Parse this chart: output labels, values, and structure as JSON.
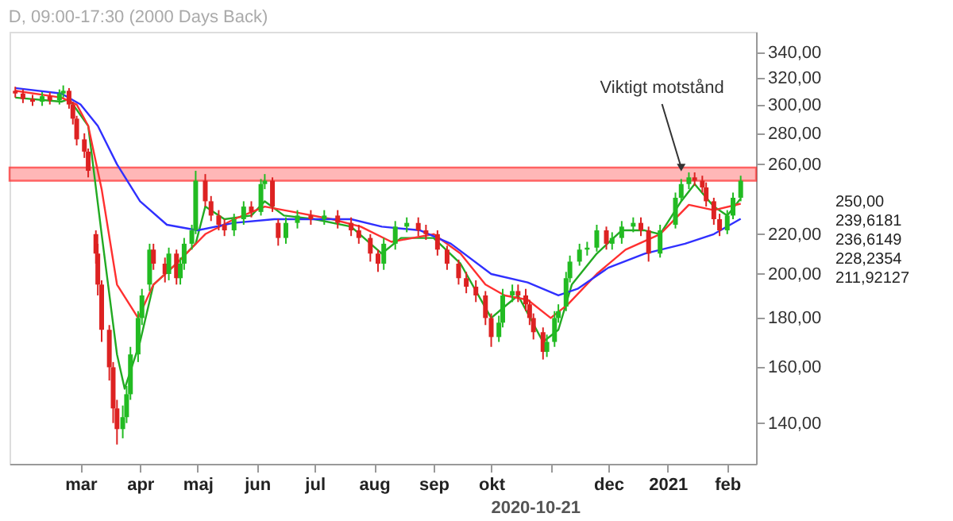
{
  "chart_data": {
    "type": "candlestick",
    "title": "D, 09:00-17:30 (2000 Days Back)",
    "x": [
      "2020-01-27",
      "2020-01-31",
      "2020-02-05",
      "2020-02-10",
      "2020-02-14",
      "2020-02-19",
      "2020-02-21",
      "2020-02-24",
      "2020-02-26",
      "2020-02-28",
      "2020-03-03",
      "2020-03-05",
      "2020-03-09",
      "2020-03-10",
      "2020-03-12",
      "2020-03-16",
      "2020-03-18",
      "2020-03-20",
      "2020-03-23",
      "2020-03-25",
      "2020-03-27",
      "2020-03-31",
      "2020-04-02",
      "2020-04-06",
      "2020-04-08",
      "2020-04-14",
      "2020-04-16",
      "2020-04-20",
      "2020-04-22",
      "2020-04-24",
      "2020-04-28",
      "2020-04-30",
      "2020-05-05",
      "2020-05-08",
      "2020-05-12",
      "2020-05-15",
      "2020-05-20",
      "2020-05-25",
      "2020-05-29",
      "2020-06-03",
      "2020-06-05",
      "2020-06-09",
      "2020-06-12",
      "2020-06-16",
      "2020-06-22",
      "2020-06-29",
      "2020-07-06",
      "2020-07-13",
      "2020-07-20",
      "2020-07-24",
      "2020-07-30",
      "2020-08-03",
      "2020-08-06",
      "2020-08-12",
      "2020-08-18",
      "2020-08-24",
      "2020-08-28",
      "2020-09-03",
      "2020-09-08",
      "2020-09-14",
      "2020-09-18",
      "2020-09-23",
      "2020-09-28",
      "2020-10-01",
      "2020-10-05",
      "2020-10-07",
      "2020-10-12",
      "2020-10-15",
      "2020-10-19",
      "2020-10-21",
      "2020-10-23",
      "2020-10-28",
      "2020-10-30",
      "2020-11-03",
      "2020-11-05",
      "2020-11-09",
      "2020-11-11",
      "2020-11-16",
      "2020-11-20",
      "2020-11-25",
      "2020-11-30",
      "2020-12-03",
      "2020-12-08",
      "2020-12-14",
      "2020-12-18",
      "2020-12-22",
      "2020-12-28",
      "2021-01-05",
      "2021-01-08",
      "2021-01-12",
      "2021-01-15",
      "2021-01-19",
      "2021-01-21",
      "2021-01-25",
      "2021-01-28",
      "2021-02-01",
      "2021-02-04",
      "2021-02-08"
    ],
    "ohlc": [
      [
        310,
        313,
        305,
        308
      ],
      [
        308,
        311,
        301,
        304
      ],
      [
        304,
        307,
        299,
        302
      ],
      [
        302,
        309,
        299,
        306
      ],
      [
        306,
        309,
        300,
        303
      ],
      [
        303,
        311,
        300,
        308
      ],
      [
        308,
        314,
        305,
        310
      ],
      [
        310,
        312,
        297,
        300
      ],
      [
        300,
        302,
        286,
        290
      ],
      [
        290,
        292,
        272,
        276
      ],
      [
        276,
        280,
        264,
        268
      ],
      [
        268,
        270,
        252,
        256
      ],
      [
        220,
        222,
        205,
        210
      ],
      [
        210,
        215,
        190,
        195
      ],
      [
        195,
        197,
        170,
        175
      ],
      [
        175,
        177,
        155,
        160
      ],
      [
        160,
        162,
        140,
        145
      ],
      [
        145,
        148,
        133,
        138
      ],
      [
        138,
        146,
        135,
        142
      ],
      [
        142,
        153,
        140,
        150
      ],
      [
        150,
        168,
        148,
        165
      ],
      [
        165,
        183,
        162,
        180
      ],
      [
        180,
        193,
        177,
        190
      ],
      [
        195,
        215,
        192,
        212
      ],
      [
        212,
        215,
        202,
        205
      ],
      [
        205,
        208,
        196,
        200
      ],
      [
        200,
        213,
        197,
        210
      ],
      [
        210,
        212,
        195,
        198
      ],
      [
        198,
        208,
        195,
        205
      ],
      [
        205,
        218,
        202,
        215
      ],
      [
        215,
        225,
        212,
        222
      ],
      [
        222,
        256,
        220,
        250
      ],
      [
        250,
        254,
        235,
        238
      ],
      [
        238,
        241,
        227,
        230
      ],
      [
        230,
        233,
        222,
        225
      ],
      [
        225,
        228,
        219,
        222
      ],
      [
        222,
        231,
        219,
        228
      ],
      [
        228,
        238,
        225,
        235
      ],
      [
        235,
        238,
        229,
        232
      ],
      [
        232,
        251,
        230,
        248
      ],
      [
        248,
        254,
        245,
        250
      ],
      [
        250,
        252,
        232,
        235
      ],
      [
        226,
        228,
        214,
        218
      ],
      [
        218,
        229,
        215,
        226
      ],
      [
        226,
        233,
        223,
        230
      ],
      [
        230,
        233,
        225,
        228
      ],
      [
        228,
        233,
        225,
        230
      ],
      [
        230,
        233,
        223,
        226
      ],
      [
        226,
        229,
        219,
        222
      ],
      [
        222,
        225,
        215,
        218
      ],
      [
        218,
        220,
        206,
        210
      ],
      [
        210,
        212,
        201,
        205
      ],
      [
        205,
        218,
        202,
        215
      ],
      [
        215,
        227,
        212,
        224
      ],
      [
        224,
        229,
        221,
        226
      ],
      [
        226,
        229,
        219,
        222
      ],
      [
        222,
        225,
        217,
        220
      ],
      [
        220,
        222,
        209,
        212
      ],
      [
        212,
        214,
        202,
        205
      ],
      [
        205,
        207,
        195,
        198
      ],
      [
        198,
        201,
        191,
        194
      ],
      [
        194,
        197,
        187,
        190
      ],
      [
        190,
        192,
        177,
        180
      ],
      [
        180,
        182,
        168,
        172
      ],
      [
        172,
        181,
        170,
        178
      ],
      [
        178,
        193,
        176,
        190
      ],
      [
        190,
        195,
        187,
        192
      ],
      [
        192,
        195,
        187,
        190
      ],
      [
        190,
        193,
        183,
        186
      ],
      [
        186,
        188,
        177,
        180
      ],
      [
        180,
        182,
        171,
        174
      ],
      [
        174,
        176,
        163,
        166
      ],
      [
        166,
        173,
        164,
        170
      ],
      [
        170,
        183,
        168,
        180
      ],
      [
        180,
        186,
        178,
        183
      ],
      [
        185,
        201,
        183,
        198
      ],
      [
        198,
        209,
        196,
        206
      ],
      [
        206,
        215,
        204,
        212
      ],
      [
        212,
        216,
        209,
        213
      ],
      [
        213,
        225,
        211,
        222
      ],
      [
        222,
        224,
        212,
        215
      ],
      [
        215,
        221,
        212,
        218
      ],
      [
        218,
        227,
        215,
        224
      ],
      [
        224,
        229,
        221,
        226
      ],
      [
        226,
        229,
        219,
        222
      ],
      [
        222,
        224,
        206,
        210
      ],
      [
        210,
        225,
        208,
        222
      ],
      [
        225,
        243,
        223,
        240
      ],
      [
        240,
        251,
        238,
        248
      ],
      [
        248,
        255,
        245,
        252
      ],
      [
        252,
        255,
        247,
        250
      ],
      [
        250,
        253,
        243,
        246
      ],
      [
        246,
        249,
        235,
        238
      ],
      [
        238,
        240,
        225,
        228
      ],
      [
        228,
        231,
        219,
        222
      ],
      [
        222,
        233,
        220,
        230
      ],
      [
        230,
        243,
        228,
        240
      ],
      [
        240,
        253,
        238,
        250
      ]
    ],
    "colors": [
      "#dd2222",
      "#dd2222",
      "#dd2222",
      "#22bb22",
      "#dd2222",
      "#22bb22",
      "#22bb22",
      "#dd2222",
      "#dd2222",
      "#dd2222",
      "#dd2222",
      "#dd2222",
      "#dd2222",
      "#dd2222",
      "#dd2222",
      "#dd2222",
      "#dd2222",
      "#dd2222",
      "#22bb22",
      "#22bb22",
      "#22bb22",
      "#22bb22",
      "#22bb22",
      "#22bb22",
      "#dd2222",
      "#dd2222",
      "#22bb22",
      "#dd2222",
      "#22bb22",
      "#22bb22",
      "#22bb22",
      "#22bb22",
      "#dd2222",
      "#dd2222",
      "#dd2222",
      "#dd2222",
      "#22bb22",
      "#22bb22",
      "#dd2222",
      "#22bb22",
      "#22bb22",
      "#dd2222",
      "#dd2222",
      "#22bb22",
      "#22bb22",
      "#dd2222",
      "#22bb22",
      "#dd2222",
      "#dd2222",
      "#dd2222",
      "#dd2222",
      "#dd2222",
      "#22bb22",
      "#22bb22",
      "#22bb22",
      "#dd2222",
      "#dd2222",
      "#dd2222",
      "#dd2222",
      "#dd2222",
      "#dd2222",
      "#dd2222",
      "#dd2222",
      "#dd2222",
      "#22bb22",
      "#22bb22",
      "#22bb22",
      "#dd2222",
      "#dd2222",
      "#dd2222",
      "#dd2222",
      "#dd2222",
      "#22bb22",
      "#22bb22",
      "#22bb22",
      "#22bb22",
      "#22bb22",
      "#22bb22",
      "#22bb22",
      "#22bb22",
      "#dd2222",
      "#22bb22",
      "#22bb22",
      "#22bb22",
      "#dd2222",
      "#dd2222",
      "#22bb22",
      "#22bb22",
      "#22bb22",
      "#22bb22",
      "#dd2222",
      "#dd2222",
      "#dd2222",
      "#dd2222",
      "#dd2222",
      "#22bb22",
      "#22bb22",
      "#22bb22"
    ],
    "series": [
      {
        "type": "line",
        "color": "#22aa22",
        "x": [
          "2020-01-27",
          "2020-02-20",
          "2020-02-24",
          "2020-03-05",
          "2020-03-12",
          "2020-03-20",
          "2020-03-24",
          "2020-04-01",
          "2020-04-08",
          "2020-04-20",
          "2020-04-30",
          "2020-05-05",
          "2020-05-15",
          "2020-05-29",
          "2020-06-05",
          "2020-06-15",
          "2020-07-01",
          "2020-07-20",
          "2020-08-05",
          "2020-08-15",
          "2020-09-01",
          "2020-09-15",
          "2020-10-01",
          "2020-10-08",
          "2020-10-15",
          "2020-10-28",
          "2020-11-05",
          "2020-11-12",
          "2020-11-25",
          "2020-12-08",
          "2020-12-20",
          "2020-12-28",
          "2021-01-08",
          "2021-01-15",
          "2021-01-25",
          "2021-02-01",
          "2021-02-08"
        ],
        "values": [
          305,
          302,
          304,
          285,
          220,
          165,
          152,
          170,
          195,
          205,
          215,
          235,
          228,
          230,
          238,
          230,
          228,
          224,
          210,
          218,
          218,
          205,
          180,
          185,
          190,
          170,
          175,
          195,
          210,
          222,
          222,
          220,
          238,
          248,
          235,
          230,
          239.6
        ]
      },
      {
        "type": "line",
        "color": "#ff3030",
        "x": [
          "2020-01-27",
          "2020-02-20",
          "2020-02-28",
          "2020-03-05",
          "2020-03-12",
          "2020-03-20",
          "2020-03-31",
          "2020-04-08",
          "2020-04-20",
          "2020-05-05",
          "2020-05-20",
          "2020-06-05",
          "2020-06-20",
          "2020-07-10",
          "2020-07-25",
          "2020-08-10",
          "2020-09-01",
          "2020-09-15",
          "2020-09-28",
          "2020-10-08",
          "2020-10-20",
          "2020-11-01",
          "2020-11-10",
          "2020-11-25",
          "2020-12-10",
          "2020-12-28",
          "2021-01-12",
          "2021-01-25",
          "2021-02-08"
        ],
        "values": [
          310,
          305,
          300,
          285,
          245,
          195,
          180,
          195,
          205,
          220,
          228,
          235,
          232,
          228,
          224,
          216,
          220,
          210,
          195,
          190,
          188,
          180,
          186,
          200,
          212,
          220,
          236,
          233,
          236.6
        ]
      },
      {
        "type": "line",
        "color": "#3030ff",
        "x": [
          "2020-01-27",
          "2020-02-20",
          "2020-03-01",
          "2020-03-10",
          "2020-03-20",
          "2020-04-01",
          "2020-04-15",
          "2020-05-01",
          "2020-05-20",
          "2020-06-10",
          "2020-07-01",
          "2020-07-20",
          "2020-08-05",
          "2020-08-25",
          "2020-09-10",
          "2020-10-01",
          "2020-10-20",
          "2020-11-05",
          "2020-11-15",
          "2020-12-01",
          "2020-12-20",
          "2021-01-10",
          "2021-01-25",
          "2021-02-08"
        ],
        "values": [
          312,
          308,
          300,
          285,
          260,
          238,
          225,
          222,
          226,
          228,
          228,
          228,
          224,
          222,
          215,
          200,
          196,
          190,
          193,
          203,
          210,
          215,
          220,
          228.2
        ]
      }
    ],
    "log": true,
    "ylim": [
      127,
      357
    ],
    "yticks": [
      {
        "value": 140,
        "label": "140,00"
      },
      {
        "value": 160,
        "label": "160,00"
      },
      {
        "value": 180,
        "label": "180,00"
      },
      {
        "value": 200,
        "label": "200,00"
      },
      {
        "value": 220,
        "label": "220,00"
      },
      {
        "value": 260,
        "label": "260,00"
      },
      {
        "value": 280,
        "label": "280,00"
      },
      {
        "value": 300,
        "label": "300,00"
      },
      {
        "value": 320,
        "label": "320,00"
      },
      {
        "value": 340,
        "label": "340,00"
      }
    ],
    "xlim": [
      "2020-01-24",
      "2021-02-16"
    ],
    "xticks": [
      {
        "value": "2020-03-01",
        "label": "mar"
      },
      {
        "value": "2020-04-01",
        "label": "apr"
      },
      {
        "value": "2020-05-01",
        "label": "maj"
      },
      {
        "value": "2020-06-01",
        "label": "jun"
      },
      {
        "value": "2020-07-01",
        "label": "jul"
      },
      {
        "value": "2020-08-01",
        "label": "aug"
      },
      {
        "value": "2020-09-01",
        "label": "sep"
      },
      {
        "value": "2020-10-01",
        "label": "okt"
      },
      {
        "value": "2020-11-01",
        "label": null
      },
      {
        "value": "2020-12-01",
        "label": "dec"
      },
      {
        "value": "2021-01-01",
        "label": "2021"
      },
      {
        "value": "2021-02-01",
        "label": "feb"
      }
    ],
    "bands": [
      {
        "axis": "y",
        "from": 250,
        "to": 258,
        "color": "#ff9999"
      }
    ],
    "annotations": [
      {
        "text": "Viktigt motstånd",
        "x": "2021-01-08",
        "y": 258
      },
      "250,00",
      "239,6181",
      "236,6149",
      "228,2354",
      "211,92127",
      "2020-10-21"
    ],
    "grid": false
  }
}
